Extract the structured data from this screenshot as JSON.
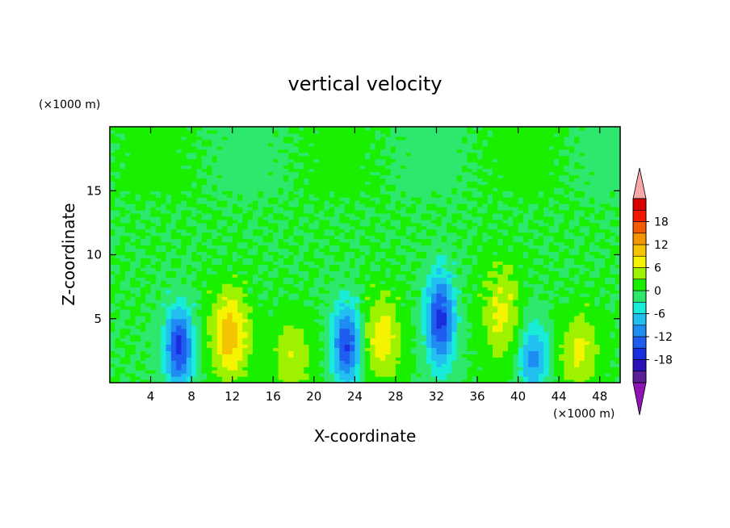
{
  "chart_data": {
    "type": "heatmap",
    "title": "vertical velocity",
    "xlabel": "X-coordinate",
    "ylabel": "Z-coordinate",
    "x_unit": "(×1000 m)",
    "y_unit": "(×1000 m)",
    "xlim": [
      0,
      50
    ],
    "ylim": [
      0,
      20
    ],
    "x_ticks": [
      4,
      8,
      12,
      16,
      20,
      24,
      28,
      32,
      36,
      40,
      44,
      48
    ],
    "y_ticks": [
      5,
      10,
      15
    ],
    "colorbar": {
      "levels": [
        -21,
        -18,
        -15,
        -12,
        -9,
        -6,
        -3,
        0,
        3,
        6,
        9,
        12,
        15,
        18,
        21
      ],
      "tick_labels": [
        18,
        12,
        6,
        0,
        -6,
        -12,
        -18
      ],
      "colors": [
        "#5a1e96",
        "#2a10b8",
        "#1a2ee0",
        "#1f5cf0",
        "#1e8cf0",
        "#22c0f0",
        "#18ecd8",
        "#2ee86e",
        "#18f000",
        "#9ef200",
        "#f4f400",
        "#f4c400",
        "#f49600",
        "#f45a00",
        "#f01800",
        "#d80000"
      ],
      "over_color": "#f7a8a8",
      "under_color": "#8e14b4"
    },
    "features": [
      {
        "kind": "downdraft",
        "x": 6.8,
        "z": 2.8,
        "peak": -16
      },
      {
        "kind": "updraft",
        "x": 11.8,
        "z": 3.8,
        "peak": 11
      },
      {
        "kind": "updraft",
        "x": 18.0,
        "z": 2.0,
        "peak": 6
      },
      {
        "kind": "downdraft",
        "x": 23.2,
        "z": 3.0,
        "peak": -15
      },
      {
        "kind": "updraft",
        "x": 26.6,
        "z": 3.5,
        "peak": 8
      },
      {
        "kind": "downdraft",
        "x": 32.4,
        "z": 5.0,
        "peak": -16
      },
      {
        "kind": "updraft",
        "x": 38.4,
        "z": 5.5,
        "peak": 7
      },
      {
        "kind": "downdraft",
        "x": 41.5,
        "z": 2.0,
        "peak": -10
      },
      {
        "kind": "updraft",
        "x": 46.0,
        "z": 2.5,
        "peak": 7
      }
    ]
  }
}
